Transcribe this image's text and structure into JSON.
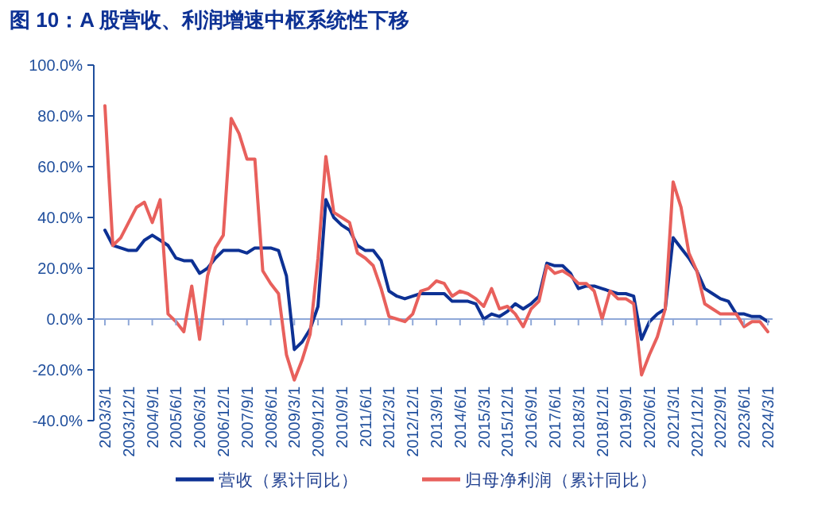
{
  "chart_data": {
    "type": "line",
    "title": "图 10：A 股营收、利润增速中枢系统性下移",
    "categories": [
      "2003/3/1",
      null,
      null,
      "2003/12/1",
      null,
      null,
      "2004/9/1",
      null,
      null,
      "2005/6/1",
      null,
      null,
      "2006/3/1",
      null,
      null,
      "2006/12/1",
      null,
      null,
      "2007/9/1",
      null,
      null,
      "2008/6/1",
      null,
      null,
      "2009/3/1",
      null,
      null,
      "2009/12/1",
      null,
      null,
      "2010/9/1",
      null,
      null,
      "2011/6/1",
      null,
      null,
      "2012/3/1",
      null,
      null,
      "2012/12/1",
      null,
      null,
      "2013/9/1",
      null,
      null,
      "2014/6/1",
      null,
      null,
      "2015/3/1",
      null,
      null,
      "2015/12/1",
      null,
      null,
      "2016/9/1",
      null,
      null,
      "2017/6/1",
      null,
      null,
      "2018/3/1",
      null,
      null,
      "2018/12/1",
      null,
      null,
      "2019/9/1",
      null,
      null,
      "2020/6/1",
      null,
      null,
      "2021/3/1",
      null,
      null,
      "2021/12/1",
      null,
      null,
      "2022/9/1",
      null,
      null,
      "2023/6/1",
      null,
      null,
      "2024/3/1"
    ],
    "series": [
      {
        "name": "营收（累计同比）",
        "color": "#0d3194",
        "values": [
          35,
          29,
          28,
          27,
          27,
          31,
          33,
          31,
          29,
          24,
          23,
          23,
          18,
          20,
          24,
          27,
          27,
          27,
          26,
          28,
          28,
          28,
          27,
          17,
          -12,
          -9,
          -4,
          5,
          47,
          40,
          37,
          35,
          29,
          27,
          27,
          23,
          11,
          9,
          8,
          9,
          10,
          10,
          10,
          10,
          7,
          7,
          7,
          6,
          0,
          2,
          1,
          3,
          6,
          4,
          6,
          9,
          22,
          21,
          21,
          18,
          12,
          13,
          13,
          12,
          11,
          10,
          10,
          9,
          -8,
          -1,
          2,
          4,
          32,
          28,
          24,
          19,
          12,
          10,
          8,
          7,
          2,
          2,
          1,
          1,
          -1
        ]
      },
      {
        "name": "归母净利润（累计同比）",
        "color": "#e8605c",
        "values": [
          84,
          29,
          32,
          38,
          44,
          46,
          38,
          47,
          2,
          -1,
          -5,
          13,
          -8,
          17,
          28,
          33,
          79,
          73,
          63,
          63,
          19,
          14,
          10,
          -14,
          -24,
          -16,
          -6,
          24,
          64,
          42,
          40,
          38,
          26,
          24,
          21,
          12,
          1,
          0,
          -1,
          2,
          11,
          12,
          15,
          14,
          9,
          11,
          10,
          8,
          5,
          12,
          4,
          5,
          2,
          -3,
          4,
          7,
          21,
          18,
          19,
          17,
          14,
          14,
          11,
          0,
          11,
          8,
          8,
          6,
          -22,
          -14,
          -7,
          4,
          54,
          44,
          26,
          19,
          6,
          4,
          2,
          2,
          2,
          -3,
          -1,
          -1,
          -5
        ]
      }
    ],
    "ylim": [
      -40,
      100
    ],
    "yticks": [
      {
        "value": -40,
        "label": "-40.0%"
      },
      {
        "value": -20,
        "label": "-20.0%"
      },
      {
        "value": 0,
        "label": "0.0%"
      },
      {
        "value": 20,
        "label": "20.0%"
      },
      {
        "value": 40,
        "label": "40.0%"
      },
      {
        "value": 60,
        "label": "60.0%"
      },
      {
        "value": 80,
        "label": "80.0%"
      },
      {
        "value": 100,
        "label": "100.0%"
      }
    ],
    "ref_lines": [
      {
        "axis": "y",
        "value": 0,
        "color": "#8fa8d8"
      }
    ],
    "grid": false,
    "legend": "bottom",
    "marker": "none",
    "line_style": "solid"
  }
}
